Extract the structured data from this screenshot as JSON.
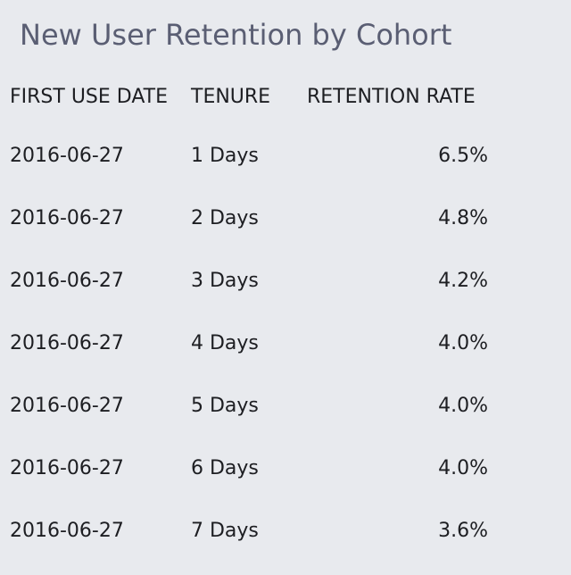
{
  "title": "New User Retention by Cohort",
  "chart_data": {
    "type": "table",
    "title": "New User Retention by Cohort",
    "columns": [
      "FIRST USE DATE",
      "TENURE",
      "RETENTION RATE"
    ],
    "rows": [
      {
        "first_use_date": "2016-06-27",
        "tenure": "1 Days",
        "retention_rate": "6.5%"
      },
      {
        "first_use_date": "2016-06-27",
        "tenure": "2 Days",
        "retention_rate": "4.8%"
      },
      {
        "first_use_date": "2016-06-27",
        "tenure": "3 Days",
        "retention_rate": "4.2%"
      },
      {
        "first_use_date": "2016-06-27",
        "tenure": "4 Days",
        "retention_rate": "4.0%"
      },
      {
        "first_use_date": "2016-06-27",
        "tenure": "5 Days",
        "retention_rate": "4.0%"
      },
      {
        "first_use_date": "2016-06-27",
        "tenure": "6 Days",
        "retention_rate": "4.0%"
      },
      {
        "first_use_date": "2016-06-27",
        "tenure": "7 Days",
        "retention_rate": "3.6%"
      }
    ]
  }
}
